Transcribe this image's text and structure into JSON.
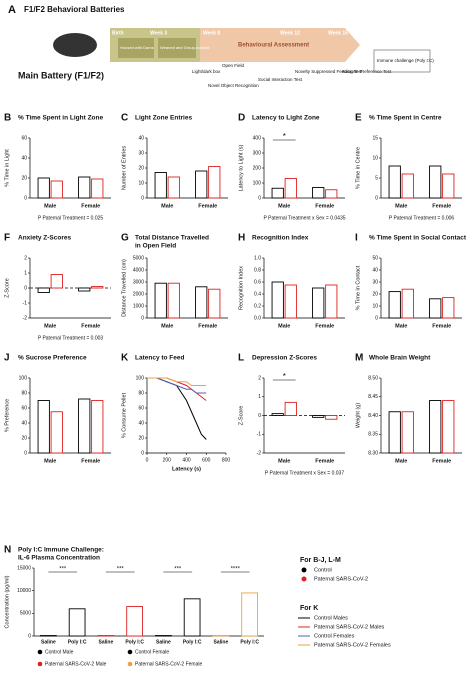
{
  "diagram": {
    "label": "A",
    "title": "F1/F2 Behavioral Batteries",
    "main": "Main Battery (F1/F2)",
    "weeks": [
      "Birth",
      "Week 3",
      "Week 8",
      "Week 12",
      "Week 15"
    ],
    "stages": [
      "Housed with Dams",
      "Weaned and Group-housed",
      "Behavioural Assessment"
    ],
    "tests": [
      "Light/dark box",
      "Open Field",
      "Novel Object Recognition",
      "Social Interaction Test",
      "Novelty Suppressed Feeding Test",
      "Sucrose Preference Test"
    ],
    "challenge": "Immune challenge (Poly I:C)"
  },
  "legend": {
    "title1": "For B-J, L-M",
    "items1": [
      {
        "name": "Control",
        "color": "#000000"
      },
      {
        "name": "Paternal SARS-CoV-2",
        "color": "#e02020"
      }
    ],
    "title2": "For K",
    "items2": [
      {
        "name": "Control Males",
        "color": "#000000"
      },
      {
        "name": "Paternal SARS-CoV-2 Males",
        "color": "#e02020"
      },
      {
        "name": "Control Females",
        "color": "#5060c0"
      },
      {
        "name": "Paternal SARS-CoV-2 Females",
        "color": "#f0a040"
      }
    ]
  },
  "chart_data": [
    {
      "type": "bar",
      "label": "B",
      "title": "% Time Spent  in Light Zone",
      "ylabel": "% Time in Light",
      "categories": [
        "Male",
        "Female"
      ],
      "ylim": [
        0,
        60
      ],
      "yticks": [
        0,
        20,
        40,
        60
      ],
      "series": [
        {
          "color": "#000000",
          "values": [
            20,
            21
          ]
        },
        {
          "color": "#e02020",
          "values": [
            17,
            19
          ]
        }
      ],
      "note": "P Paternal Treatment = 0.025"
    },
    {
      "type": "bar",
      "label": "C",
      "title": "Light Zone Entries",
      "ylabel": "Number of Entries",
      "categories": [
        "Male",
        "Female"
      ],
      "ylim": [
        0,
        40
      ],
      "yticks": [
        0,
        10,
        20,
        30,
        40
      ],
      "series": [
        {
          "color": "#000000",
          "values": [
            17,
            18
          ]
        },
        {
          "color": "#e02020",
          "values": [
            14,
            21
          ]
        }
      ]
    },
    {
      "type": "bar",
      "label": "D",
      "title": "Latency to Light Zone",
      "ylabel": "Latency to Light (s)",
      "categories": [
        "Male",
        "Female"
      ],
      "ylim": [
        0,
        400
      ],
      "yticks": [
        0,
        100,
        200,
        300,
        400
      ],
      "series": [
        {
          "color": "#000000",
          "values": [
            65,
            70
          ]
        },
        {
          "color": "#e02020",
          "values": [
            130,
            55
          ]
        }
      ],
      "annotation": "*",
      "note": "P Paternal Treatment x Sex = 0.0435"
    },
    {
      "type": "bar",
      "label": "E",
      "title": "% Time Spent in Centre",
      "ylabel": "% Time in Centre",
      "categories": [
        "Male",
        "Female"
      ],
      "ylim": [
        0,
        15
      ],
      "yticks": [
        0,
        5,
        10,
        15
      ],
      "series": [
        {
          "color": "#000000",
          "values": [
            8,
            8
          ]
        },
        {
          "color": "#e02020",
          "values": [
            6,
            6
          ]
        }
      ],
      "note": "P Paternal Treatment = 0.006"
    },
    {
      "type": "bar",
      "label": "F",
      "title": "Anxiety Z-Scores",
      "ylabel": "Z-Score",
      "categories": [
        "Male",
        "Female"
      ],
      "ylim": [
        -2,
        2
      ],
      "yticks": [
        -2,
        -1,
        0,
        1,
        2
      ],
      "hline": 0,
      "series": [
        {
          "color": "#000000",
          "values": [
            -0.3,
            -0.2
          ]
        },
        {
          "color": "#e02020",
          "values": [
            0.9,
            0.1
          ]
        }
      ],
      "note": "P Paternal Treatment = 0.003"
    },
    {
      "type": "bar",
      "label": "G",
      "title": [
        "Total Distance Travelled",
        "in Open Field"
      ],
      "ylabel": "Distance Travelled (cm)",
      "categories": [
        "Male",
        "Female"
      ],
      "ylim": [
        0,
        5000
      ],
      "yticks": [
        0,
        1000,
        2000,
        3000,
        4000,
        5000
      ],
      "series": [
        {
          "color": "#000000",
          "values": [
            2900,
            2600
          ]
        },
        {
          "color": "#e02020",
          "values": [
            2900,
            2400
          ]
        }
      ]
    },
    {
      "type": "bar",
      "label": "H",
      "title": "Recognition Index",
      "ylabel": "Recognition Index",
      "categories": [
        "Male",
        "Female"
      ],
      "ylim": [
        0,
        1
      ],
      "yticks": [
        {
          "value": 0,
          "label": "0.0"
        },
        0.2,
        0.4,
        0.6,
        0.8,
        {
          "value": 1,
          "label": "1.0"
        }
      ],
      "series": [
        {
          "color": "#000000",
          "values": [
            0.6,
            0.5
          ]
        },
        {
          "color": "#e02020",
          "values": [
            0.55,
            0.55
          ]
        }
      ]
    },
    {
      "type": "bar",
      "label": "I",
      "title": "% Time Spent in Social Contact",
      "ylabel": "% Time in Contact",
      "categories": [
        "Male",
        "Female"
      ],
      "ylim": [
        0,
        50
      ],
      "yticks": [
        0,
        10,
        20,
        30,
        40,
        50
      ],
      "series": [
        {
          "color": "#000000",
          "values": [
            22,
            16
          ]
        },
        {
          "color": "#e02020",
          "values": [
            24,
            17
          ]
        }
      ]
    },
    {
      "type": "bar",
      "label": "J",
      "title": "% Sucrose Preference",
      "ylabel": "% Preference",
      "categories": [
        "Male",
        "Female"
      ],
      "ylim": [
        0,
        100
      ],
      "yticks": [
        0,
        20,
        40,
        60,
        80,
        100
      ],
      "series": [
        {
          "color": "#000000",
          "values": [
            70,
            72
          ]
        },
        {
          "color": "#e02020",
          "values": [
            55,
            70
          ]
        }
      ]
    },
    {
      "type": "line",
      "label": "K",
      "title": "Latency to Feed",
      "ylabel": "% Consume Pellet",
      "xlabel": "Latency (s)",
      "x": [
        0,
        100,
        200,
        300,
        400,
        450,
        500,
        550,
        600
      ],
      "xlim": [
        0,
        800
      ],
      "xticks": [
        0,
        200,
        400,
        600,
        800
      ],
      "ylim": [
        0,
        100
      ],
      "yticks": [
        0,
        20,
        40,
        60,
        80,
        100
      ],
      "series": [
        {
          "color": "#000000",
          "values": [
            100,
            100,
            95,
            90,
            70,
            55,
            40,
            25,
            18
          ]
        },
        {
          "color": "#e02020",
          "values": [
            100,
            100,
            100,
            95,
            90,
            85,
            80,
            75,
            70
          ]
        },
        {
          "color": "#5060c0",
          "values": [
            100,
            100,
            95,
            90,
            85,
            85,
            80,
            80,
            80
          ]
        },
        {
          "color": "#f0a040",
          "values": [
            100,
            100,
            100,
            95,
            95,
            90,
            90,
            90,
            90
          ]
        }
      ]
    },
    {
      "type": "bar",
      "label": "L",
      "title": "Depression Z-Scores",
      "ylabel": "Z-Score",
      "categories": [
        "Male",
        "Female"
      ],
      "ylim": [
        -2,
        2
      ],
      "yticks": [
        -2,
        -1,
        0,
        1,
        2
      ],
      "hline": 0,
      "series": [
        {
          "color": "#000000",
          "values": [
            0.1,
            -0.1
          ]
        },
        {
          "color": "#e02020",
          "values": [
            0.7,
            -0.2
          ]
        }
      ],
      "annotation": "*",
      "note": "P Paternal Treatment x Sex = 0.037"
    },
    {
      "type": "bar",
      "label": "M",
      "title": "Whole Brain Weight",
      "ylabel": "Weight (g)",
      "categories": [
        "Male",
        "Female"
      ],
      "ylim": [
        8.3,
        8.5
      ],
      "yticks": [
        {
          "value": 8.3,
          "label": "8.30"
        },
        8.35,
        {
          "value": 8.4,
          "label": "8.40"
        },
        8.45,
        {
          "value": 8.5,
          "label": "8.50"
        }
      ],
      "series": [
        {
          "color": "#000000",
          "values": [
            8.41,
            8.44
          ]
        },
        {
          "color": "#e02020",
          "values": [
            8.41,
            8.44
          ]
        }
      ]
    },
    {
      "type": "bar-single",
      "label": "N",
      "title": [
        "Poly I:C Immune Challenge:",
        "IL-6 Plasma Concentration"
      ],
      "ylabel": "Concentration (pg/ml)",
      "categories": [
        "Saline",
        "Poly I:C",
        "Saline",
        "Poly I:C",
        "Saline",
        "Poly I:C",
        "Saline",
        "Poly I:C"
      ],
      "values": [
        100,
        6000,
        100,
        6500,
        100,
        8200,
        100,
        9500
      ],
      "colors": [
        "#000000",
        "#000000",
        "#e02020",
        "#e02020",
        "#000000",
        "#000000",
        "#f0a040",
        "#f0a040"
      ],
      "ylim": [
        0,
        15000
      ],
      "yticks": [
        0,
        5000,
        10000,
        15000
      ],
      "annotations": [
        "***",
        "***",
        "***",
        "****"
      ],
      "legend": [
        {
          "name": "Control Male",
          "color": "#000000"
        },
        {
          "name": "Control Female",
          "color": "#000000"
        },
        {
          "name": "Paternal SARS-CoV-2 Male",
          "color": "#e02020"
        },
        {
          "name": "Paternal SARS-CoV-2 Female",
          "color": "#f0a040"
        }
      ]
    }
  ]
}
